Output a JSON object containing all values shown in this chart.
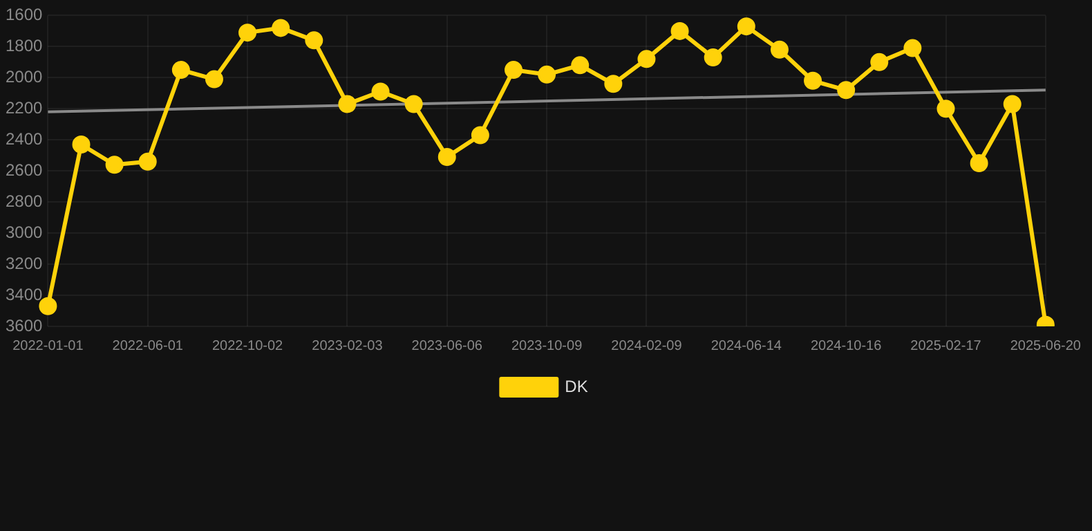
{
  "chart_data": {
    "type": "line",
    "categories": [
      "2022-01-01",
      null,
      null,
      "2022-06-01",
      null,
      null,
      "2022-10-02",
      null,
      null,
      "2023-02-03",
      null,
      null,
      "2023-06-06",
      null,
      null,
      "2023-10-09",
      null,
      null,
      "2024-02-09",
      null,
      null,
      "2024-06-14",
      null,
      null,
      "2024-10-16",
      null,
      null,
      "2025-02-17",
      null,
      null,
      "2025-06-20"
    ],
    "series": [
      {
        "name": "DK",
        "color": "#ffd20a",
        "marker": "circle",
        "values": [
          3470,
          2430,
          2560,
          2540,
          1950,
          2010,
          1710,
          1680,
          1760,
          2170,
          2090,
          2170,
          2510,
          2370,
          1950,
          1980,
          1920,
          2040,
          1880,
          1700,
          1870,
          1670,
          1820,
          2020,
          2080,
          1900,
          1810,
          2200,
          2550,
          2170,
          3590
        ]
      },
      {
        "type": "line",
        "color": "#8a8a8a",
        "marker": "none",
        "values": [
          2220,
          null,
          null,
          null,
          null,
          null,
          null,
          null,
          null,
          null,
          null,
          null,
          null,
          null,
          null,
          null,
          null,
          null,
          null,
          null,
          null,
          null,
          null,
          null,
          null,
          null,
          null,
          null,
          null,
          null,
          2080
        ]
      }
    ],
    "ylim": [
      3600,
      1600
    ],
    "yticks": [
      1600,
      1800,
      2000,
      2200,
      2400,
      2600,
      2800,
      3000,
      3200,
      3400,
      3600
    ],
    "grid": true,
    "legend": "bottom"
  }
}
